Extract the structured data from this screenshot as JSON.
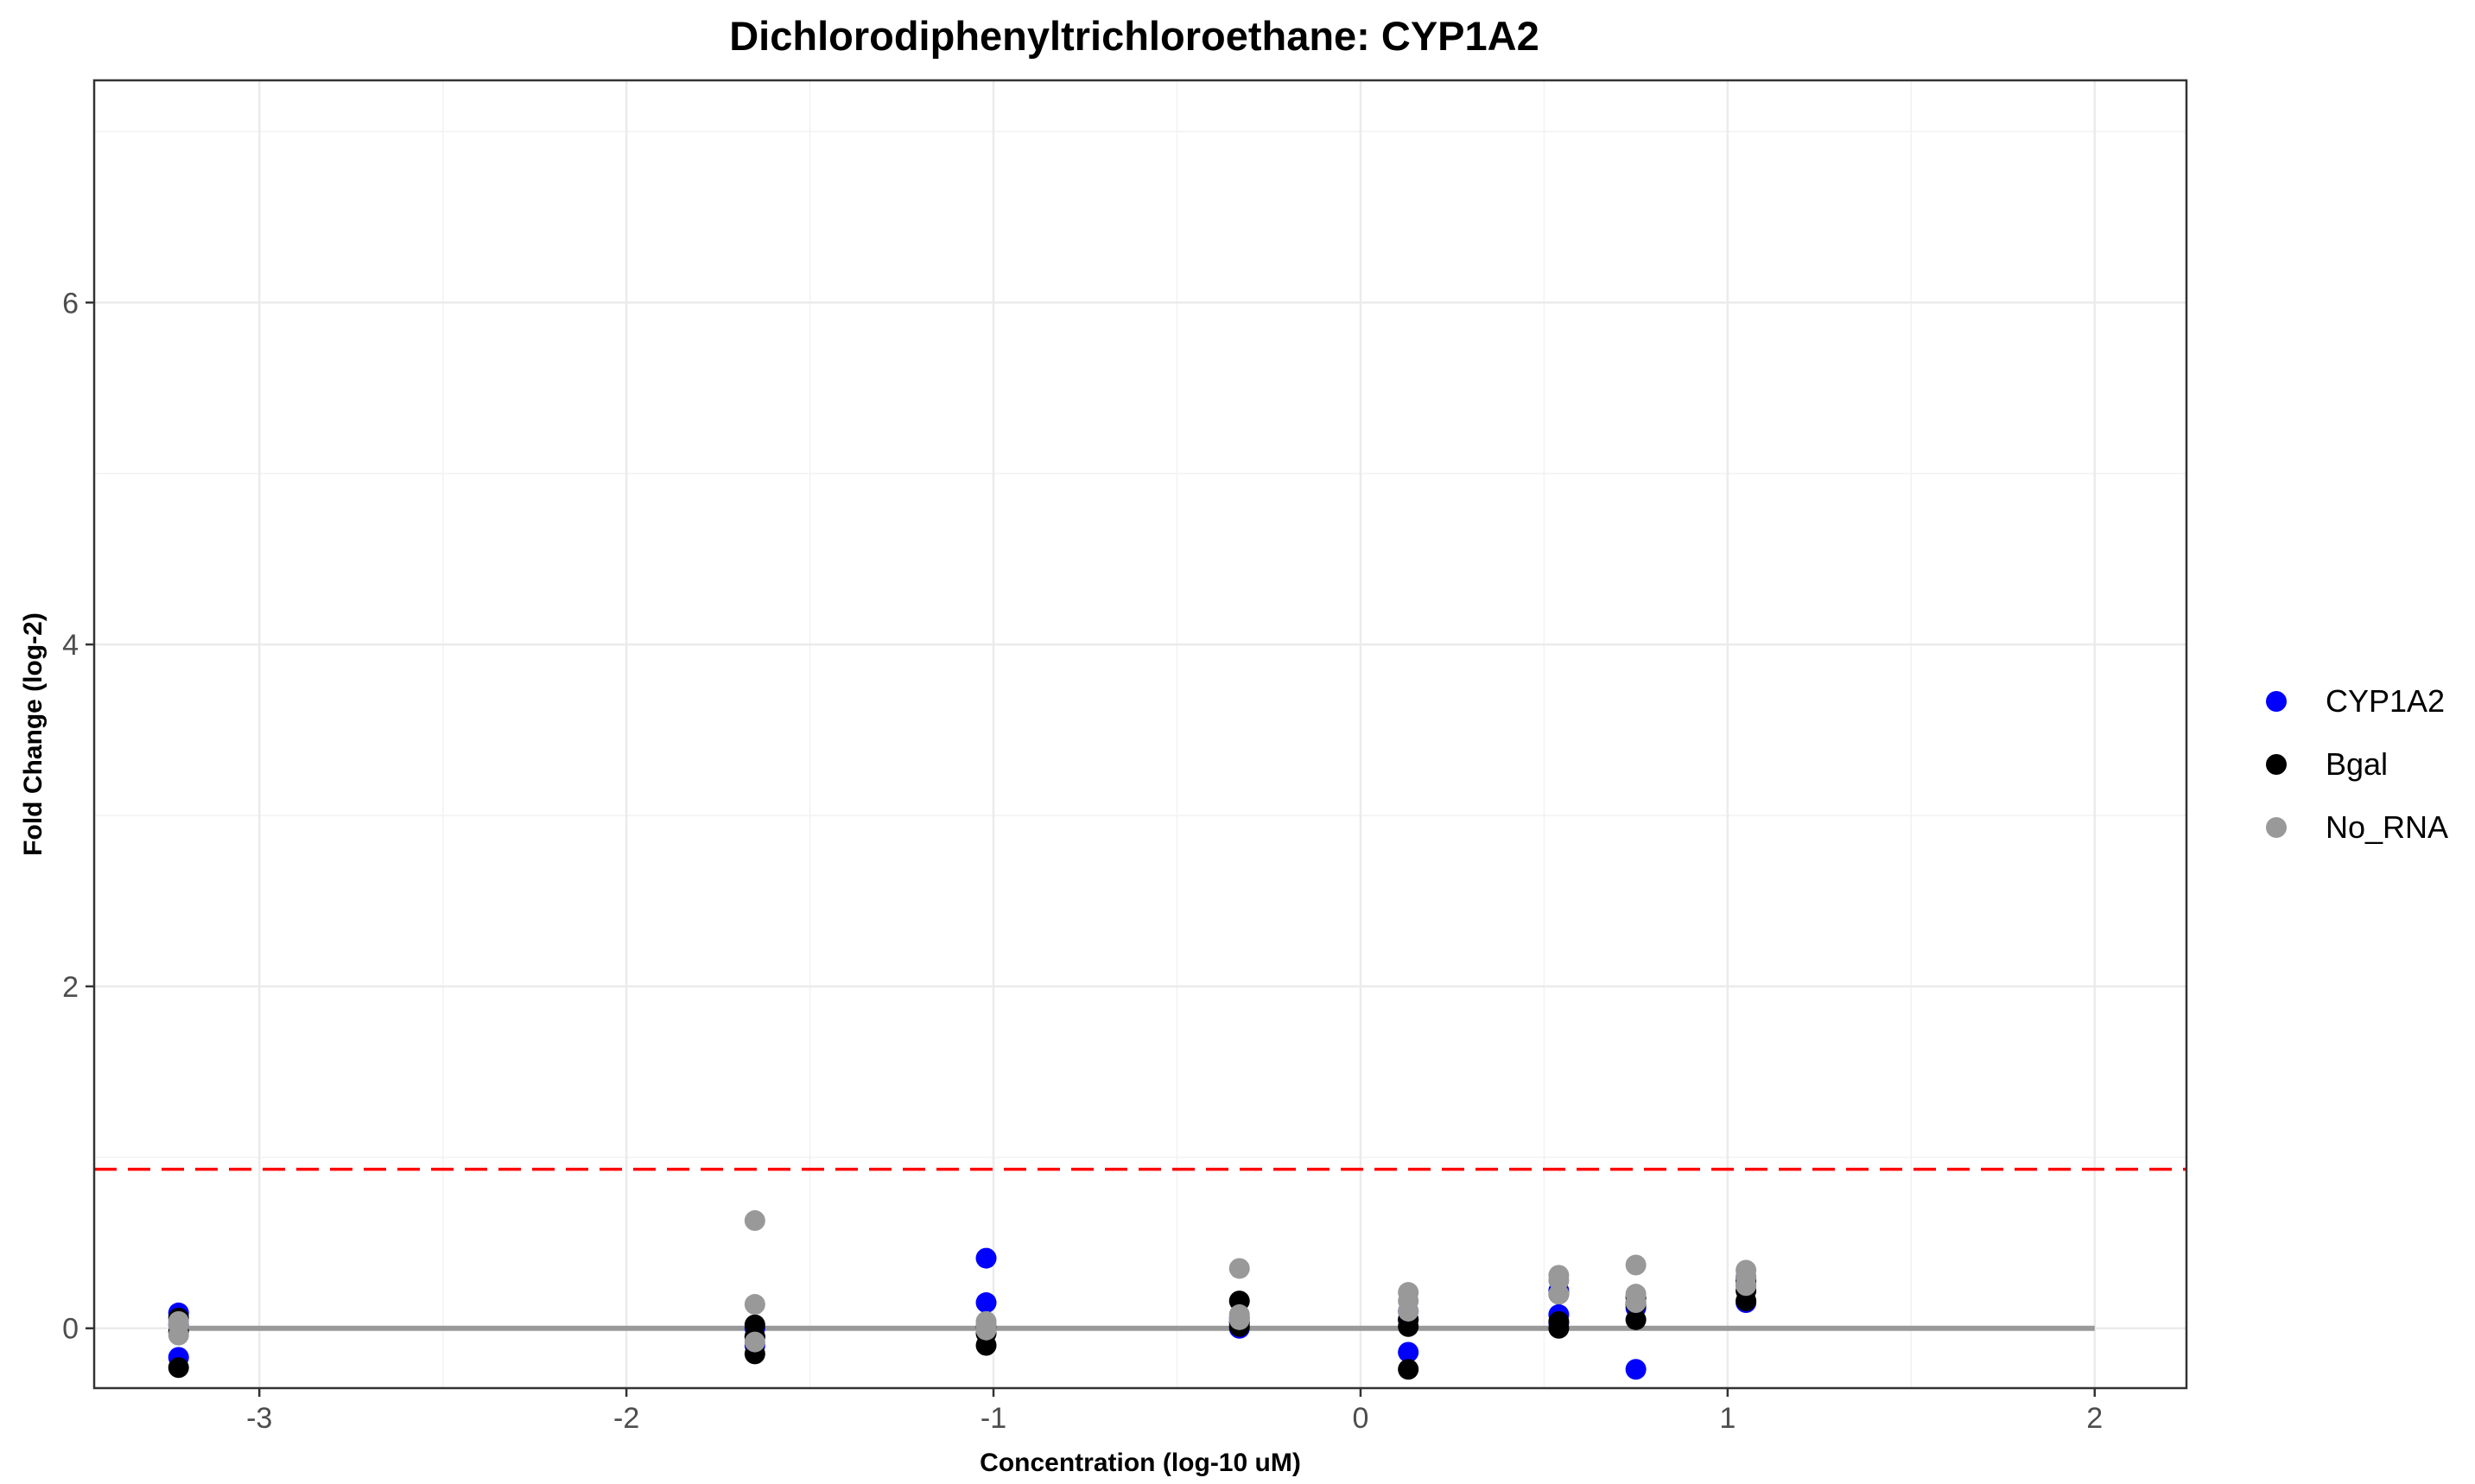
{
  "chart_data": {
    "type": "scatter",
    "title": "Dichlorodiphenyltrichloroethane: CYP1A2",
    "xlabel": "Concentration (log-10 uM)",
    "ylabel": "Fold Change (log-2)",
    "xlim": [
      -3.45,
      2.25
    ],
    "ylim": [
      -0.35,
      7.3
    ],
    "x_ticks": [
      -3,
      -2,
      -1,
      0,
      1,
      2
    ],
    "x_tick_labels": [
      "-3",
      "-2",
      "-1",
      "0",
      "1",
      "2"
    ],
    "y_ticks": [
      0,
      2,
      4,
      6
    ],
    "y_tick_labels": [
      "0",
      "2",
      "4",
      "6"
    ],
    "grid": true,
    "legend_position": "right",
    "threshold": {
      "y": 0.93,
      "style": "dashed",
      "color": "#ff0000"
    },
    "baseline": {
      "y": 0,
      "x_range": [
        -3.22,
        2
      ],
      "color": "#999999"
    },
    "series": [
      {
        "name": "CYP1A2",
        "color": "#0000ff",
        "points": [
          {
            "x": -3.22,
            "y": 0.09
          },
          {
            "x": -3.22,
            "y": -0.17
          },
          {
            "x": -3.22,
            "y": 0.02
          },
          {
            "x": -1.65,
            "y": -0.1
          },
          {
            "x": -1.65,
            "y": 0.0
          },
          {
            "x": -1.65,
            "y": -0.05
          },
          {
            "x": -1.02,
            "y": 0.41
          },
          {
            "x": -1.02,
            "y": 0.15
          },
          {
            "x": -1.02,
            "y": 0.0
          },
          {
            "x": -0.33,
            "y": 0.0
          },
          {
            "x": -0.33,
            "y": 0.03
          },
          {
            "x": -0.33,
            "y": 0.06
          },
          {
            "x": 0.13,
            "y": -0.14
          },
          {
            "x": 0.13,
            "y": 0.1
          },
          {
            "x": 0.13,
            "y": 0.05
          },
          {
            "x": 0.54,
            "y": 0.08
          },
          {
            "x": 0.54,
            "y": 0.03
          },
          {
            "x": 0.54,
            "y": 0.22
          },
          {
            "x": 0.75,
            "y": -0.24
          },
          {
            "x": 0.75,
            "y": 0.15
          },
          {
            "x": 0.75,
            "y": 0.12
          },
          {
            "x": 1.05,
            "y": 0.15
          },
          {
            "x": 1.05,
            "y": 0.25
          },
          {
            "x": 1.05,
            "y": 0.3
          }
        ]
      },
      {
        "name": "Bgal",
        "color": "#000000",
        "points": [
          {
            "x": -3.22,
            "y": -0.23
          },
          {
            "x": -3.22,
            "y": 0.06
          },
          {
            "x": -3.22,
            "y": -0.02
          },
          {
            "x": -1.65,
            "y": -0.15
          },
          {
            "x": -1.65,
            "y": 0.02
          },
          {
            "x": -1.65,
            "y": -0.05
          },
          {
            "x": -1.02,
            "y": -0.1
          },
          {
            "x": -1.02,
            "y": -0.03
          },
          {
            "x": -1.02,
            "y": 0.01
          },
          {
            "x": -0.33,
            "y": 0.16
          },
          {
            "x": -0.33,
            "y": 0.01
          },
          {
            "x": -0.33,
            "y": 0.04
          },
          {
            "x": 0.13,
            "y": -0.24
          },
          {
            "x": 0.13,
            "y": 0.01
          },
          {
            "x": 0.13,
            "y": 0.05
          },
          {
            "x": 0.54,
            "y": 0.0
          },
          {
            "x": 0.54,
            "y": 0.04
          },
          {
            "x": 0.54,
            "y": 0.2
          },
          {
            "x": 0.75,
            "y": 0.05
          },
          {
            "x": 0.75,
            "y": 0.14
          },
          {
            "x": 0.75,
            "y": 0.18
          },
          {
            "x": 1.05,
            "y": 0.16
          },
          {
            "x": 1.05,
            "y": 0.22
          },
          {
            "x": 1.05,
            "y": 0.28
          }
        ]
      },
      {
        "name": "No_RNA",
        "color": "#999999",
        "points": [
          {
            "x": -3.22,
            "y": -0.04
          },
          {
            "x": -3.22,
            "y": 0.02
          },
          {
            "x": -3.22,
            "y": 0.04
          },
          {
            "x": -1.65,
            "y": 0.63
          },
          {
            "x": -1.65,
            "y": 0.14
          },
          {
            "x": -1.65,
            "y": -0.08
          },
          {
            "x": -1.02,
            "y": 0.02
          },
          {
            "x": -1.02,
            "y": -0.01
          },
          {
            "x": -1.02,
            "y": 0.04
          },
          {
            "x": -0.33,
            "y": 0.35
          },
          {
            "x": -0.33,
            "y": 0.05
          },
          {
            "x": -0.33,
            "y": 0.08
          },
          {
            "x": 0.13,
            "y": 0.21
          },
          {
            "x": 0.13,
            "y": 0.16
          },
          {
            "x": 0.13,
            "y": 0.1
          },
          {
            "x": 0.54,
            "y": 0.31
          },
          {
            "x": 0.54,
            "y": 0.28
          },
          {
            "x": 0.54,
            "y": 0.2
          },
          {
            "x": 0.75,
            "y": 0.37
          },
          {
            "x": 0.75,
            "y": 0.2
          },
          {
            "x": 0.75,
            "y": 0.15
          },
          {
            "x": 1.05,
            "y": 0.34
          },
          {
            "x": 1.05,
            "y": 0.3
          },
          {
            "x": 1.05,
            "y": 0.25
          }
        ]
      }
    ]
  }
}
